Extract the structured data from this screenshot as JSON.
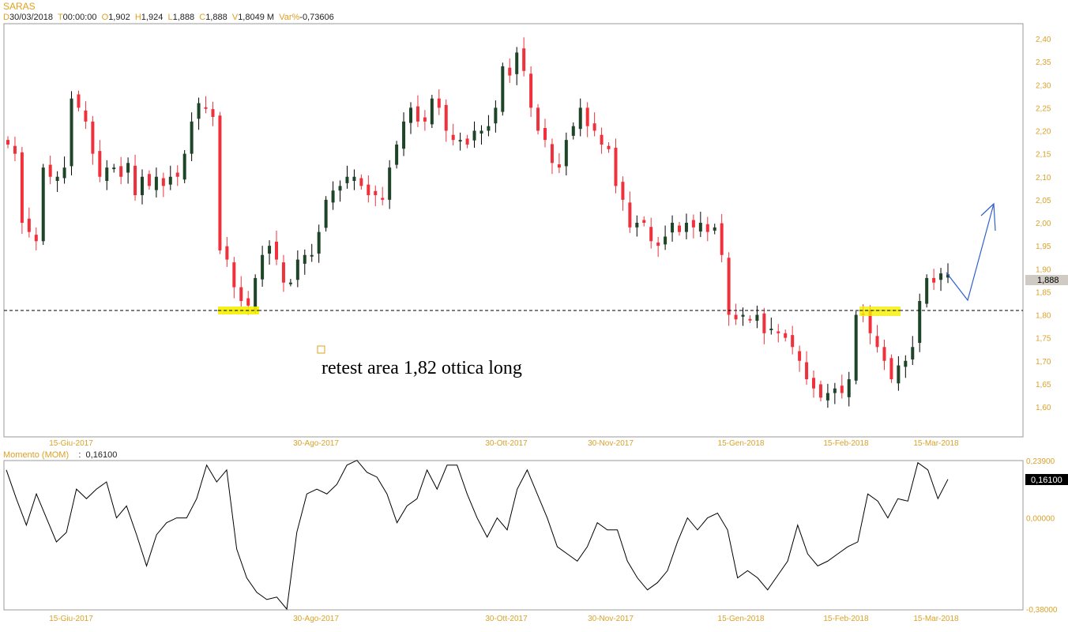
{
  "header": {
    "symbol": "SARAS",
    "d_label": "D",
    "date": "30/03/2018",
    "t_label": "T",
    "time": "00:00:00",
    "o_label": "O",
    "open": "1,902",
    "h_label": "H",
    "high": "1,924",
    "l_label": "L",
    "low": "1,888",
    "c_label": "C",
    "close": "1,888",
    "v_label": "V",
    "volume": "1,8049 M",
    "var_label": "Var%",
    "var": "-0,73606"
  },
  "indicator": {
    "name": "Momento (MOM)",
    "sep": ":",
    "value": "0,16100"
  },
  "annotation": {
    "text": "retest area 1,82 ottica long",
    "level": 1.805
  },
  "colors": {
    "up": "#1e4527",
    "down": "#f0313c",
    "axis": "#d9a22a",
    "arrow": "#2f5fd0",
    "highlight": "#f5f000"
  },
  "chart_data": [
    {
      "type": "candlestick",
      "title": "SARAS",
      "ylabel": "",
      "ylim": [
        1.55,
        2.42
      ],
      "yticks": [
        "2,40",
        "2,35",
        "2,30",
        "2,25",
        "2,20",
        "2,15",
        "2,10",
        "2,05",
        "2,00",
        "1,95",
        "1,90",
        "1,85",
        "1,80",
        "1,75",
        "1,70",
        "1,65",
        "1,60"
      ],
      "ytick_values": [
        2.4,
        2.35,
        2.3,
        2.25,
        2.2,
        2.15,
        2.1,
        2.05,
        2.0,
        1.95,
        1.9,
        1.85,
        1.8,
        1.75,
        1.7,
        1.65,
        1.6
      ],
      "xticks": [
        "15-Giu-2017",
        "30-Ago-2017",
        "30-Ott-2017",
        "30-Nov-2017",
        "15-Gen-2018",
        "15-Feb-2018",
        "15-Mar-2018"
      ],
      "last_price_label": "1,888",
      "closes": [
        2.17,
        2.15,
        2.0,
        1.98,
        1.96,
        2.12,
        2.1,
        2.1,
        2.12,
        2.27,
        2.25,
        2.22,
        2.15,
        2.1,
        2.12,
        2.12,
        2.1,
        2.13,
        2.06,
        2.1,
        2.08,
        2.1,
        2.08,
        2.1,
        2.1,
        2.15,
        2.22,
        2.26,
        2.25,
        2.23,
        1.94,
        1.92,
        1.86,
        1.83,
        1.82,
        1.88,
        1.93,
        1.95,
        1.92,
        1.87,
        1.87,
        1.92,
        1.93,
        1.93,
        1.98,
        2.05,
        2.07,
        2.08,
        2.1,
        2.1,
        2.08,
        2.06,
        2.06,
        2.05,
        2.12,
        2.17,
        2.22,
        2.25,
        2.22,
        2.22,
        2.27,
        2.25,
        2.2,
        2.18,
        2.18,
        2.17,
        2.2,
        2.2,
        2.21,
        2.25,
        2.34,
        2.32,
        2.37,
        2.33,
        2.25,
        2.2,
        2.18,
        2.13,
        2.12,
        2.18,
        2.21,
        2.25,
        2.21,
        2.2,
        2.17,
        2.16,
        2.08,
        2.05,
        1.99,
        2.0,
        2.0,
        1.96,
        1.95,
        1.97,
        2.0,
        1.98,
        2.0,
        1.99,
        2.0,
        1.98,
        1.99,
        1.93,
        1.8,
        1.79,
        1.8,
        1.79,
        1.8,
        1.76,
        1.77,
        1.76,
        1.75,
        1.73,
        1.7,
        1.66,
        1.64,
        1.62,
        1.63,
        1.64,
        1.63,
        1.66,
        1.8,
        1.8,
        1.76,
        1.73,
        1.7,
        1.66,
        1.69,
        1.7,
        1.73,
        1.83,
        1.88,
        1.87,
        1.89,
        1.888
      ]
    },
    {
      "type": "line",
      "title": "Momento (MOM)",
      "ylim": [
        -0.38,
        0.239
      ],
      "yticks": [
        "0,23900",
        "0,00000",
        "-0,38000"
      ],
      "ytick_values": [
        0.239,
        0,
        -0.38
      ],
      "last_value_label": "0,16100",
      "values": [
        0.2,
        0.08,
        -0.03,
        0.1,
        0.0,
        -0.1,
        -0.06,
        0.12,
        0.08,
        0.12,
        0.15,
        0.0,
        0.05,
        -0.07,
        -0.2,
        -0.07,
        -0.02,
        0.0,
        0.0,
        0.08,
        0.22,
        0.15,
        0.2,
        -0.13,
        -0.25,
        -0.31,
        -0.34,
        -0.33,
        -0.38,
        -0.06,
        0.1,
        0.12,
        0.1,
        0.14,
        0.22,
        0.24,
        0.19,
        0.17,
        0.1,
        -0.02,
        0.05,
        0.08,
        0.2,
        0.12,
        0.22,
        0.22,
        0.1,
        0.0,
        -0.08,
        0.0,
        -0.05,
        0.12,
        0.2,
        0.1,
        0.0,
        -0.12,
        -0.15,
        -0.18,
        -0.12,
        -0.02,
        -0.05,
        -0.05,
        -0.18,
        -0.25,
        -0.3,
        -0.27,
        -0.22,
        -0.1,
        0.0,
        -0.05,
        0.0,
        0.02,
        -0.05,
        -0.25,
        -0.22,
        -0.25,
        -0.3,
        -0.24,
        -0.18,
        -0.03,
        -0.15,
        -0.2,
        -0.18,
        -0.15,
        -0.12,
        -0.1,
        0.1,
        0.07,
        0.0,
        0.08,
        0.07,
        0.23,
        0.2,
        0.08,
        0.161
      ]
    }
  ]
}
